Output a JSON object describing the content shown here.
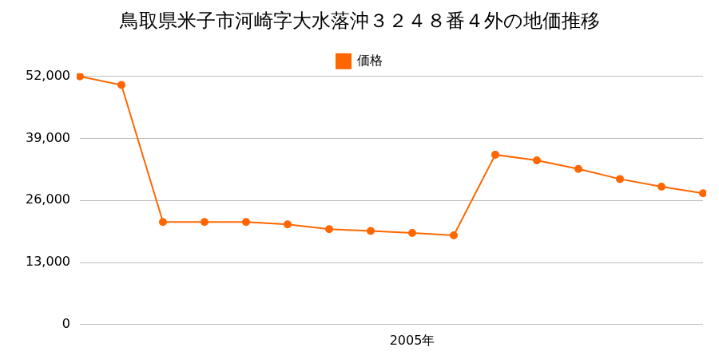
{
  "chart_data": {
    "type": "line",
    "title": "鳥取県米子市河崎字大水落沖３２４８番４外の地価推移",
    "categories": [
      null,
      null,
      null,
      null,
      null,
      null,
      null,
      null,
      "2005年",
      null,
      null,
      null,
      null,
      null,
      null,
      null
    ],
    "series": [
      {
        "name": "価格",
        "color": "#ff6600",
        "values": [
          52000,
          50200,
          21500,
          21500,
          21500,
          21000,
          20000,
          19600,
          19200,
          18700,
          35600,
          34400,
          32600,
          30500,
          28900,
          27500
        ]
      }
    ],
    "ylim": [
      0,
      52000
    ],
    "yticks": [
      0,
      {
        "value": 13000,
        "label": "13,000"
      },
      {
        "value": 26000,
        "label": "26,000"
      },
      {
        "value": 39000,
        "label": "39,000"
      },
      {
        "value": 52000,
        "label": "52,000"
      }
    ],
    "grid": true,
    "legend": "top",
    "marker": "circle"
  }
}
